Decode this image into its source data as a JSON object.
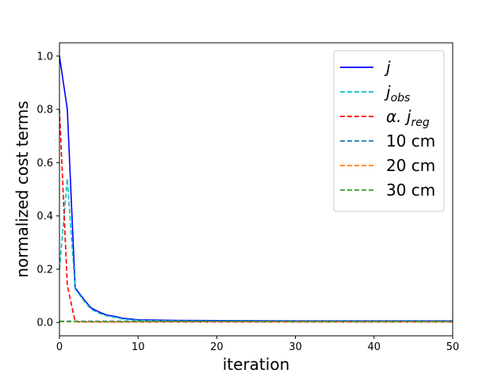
{
  "chart_data": {
    "type": "line",
    "title": "",
    "xlabel": "iteration",
    "ylabel": "normalized cost terms",
    "xlim": [
      0,
      50
    ],
    "ylim": [
      -0.05,
      1.05
    ],
    "xticks": [
      0,
      10,
      20,
      30,
      40,
      50
    ],
    "yticks": [
      0.0,
      0.2,
      0.4,
      0.6,
      0.8,
      1.0
    ],
    "xtick_labels": [
      "0",
      "10",
      "20",
      "30",
      "40",
      "50"
    ],
    "ytick_labels": [
      "0.0",
      "0.2",
      "0.4",
      "0.6",
      "0.8",
      "1.0"
    ],
    "grid": false,
    "legend_position": "top-right",
    "series": [
      {
        "name": "j",
        "legend_main": "j",
        "legend_sub": "",
        "color": "#0000ff",
        "dash": "solid",
        "x": [
          0,
          1,
          2,
          3,
          4,
          5,
          6,
          7,
          8,
          9,
          10,
          15,
          20,
          30,
          40,
          50
        ],
        "y": [
          1.0,
          0.8,
          0.13,
          0.09,
          0.055,
          0.04,
          0.028,
          0.023,
          0.016,
          0.013,
          0.01,
          0.008,
          0.007,
          0.006,
          0.006,
          0.006
        ]
      },
      {
        "name": "j_obs",
        "legend_main": "j",
        "legend_sub": "obs",
        "color": "#00bfbf",
        "dash": "dashed",
        "x": [
          0,
          1,
          2,
          3,
          4,
          5,
          6,
          7,
          8,
          9,
          10,
          15,
          20,
          30,
          40,
          50
        ],
        "y": [
          0.2,
          0.54,
          0.125,
          0.085,
          0.05,
          0.035,
          0.025,
          0.02,
          0.013,
          0.01,
          0.008,
          0.006,
          0.005,
          0.004,
          0.004,
          0.004
        ]
      },
      {
        "name": "alpha.j_reg",
        "legend_main": "α. j",
        "legend_sub": "reg",
        "color": "#ff0000",
        "dash": "dashed",
        "x": [
          0,
          1,
          2,
          3,
          5,
          10,
          20,
          30,
          40,
          50
        ],
        "y": [
          0.8,
          0.14,
          0.003,
          0.002,
          0.002,
          0.002,
          0.002,
          0.002,
          0.002,
          0.002
        ]
      },
      {
        "name": "10 cm",
        "legend_main": "10 cm",
        "legend_sub": "",
        "color": "#1f77b4",
        "dash": "dashed",
        "x": [
          0,
          10,
          20,
          30,
          40,
          50
        ],
        "y": [
          0.005,
          0.005,
          0.005,
          0.005,
          0.005,
          0.005
        ]
      },
      {
        "name": "20 cm",
        "legend_main": "20 cm",
        "legend_sub": "",
        "color": "#ff7f0e",
        "dash": "dashed",
        "x": [
          0,
          10,
          20,
          30,
          40,
          50
        ],
        "y": [
          0.003,
          0.003,
          0.003,
          0.003,
          0.003,
          0.003
        ]
      },
      {
        "name": "30 cm",
        "legend_main": "30 cm",
        "legend_sub": "",
        "color": "#2ca02c",
        "dash": "dashed",
        "x": [
          0,
          10,
          20,
          30,
          40,
          50
        ],
        "y": [
          0.004,
          0.004,
          0.004,
          0.004,
          0.004,
          0.004
        ]
      }
    ]
  }
}
